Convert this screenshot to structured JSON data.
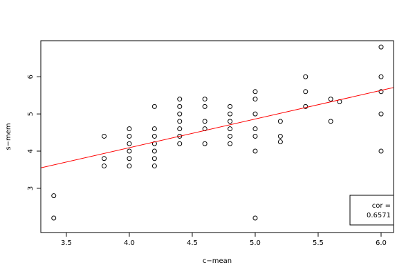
{
  "chart_data": {
    "type": "scatter",
    "xlabel": "c−mean",
    "ylabel": "s−mem",
    "x": [
      3.4,
      3.4,
      3.8,
      3.8,
      3.8,
      4.0,
      4.0,
      4.0,
      4.0,
      4.0,
      4.0,
      4.2,
      4.2,
      4.2,
      4.2,
      4.2,
      4.2,
      4.2,
      4.4,
      4.4,
      4.4,
      4.4,
      4.4,
      4.4,
      4.4,
      4.6,
      4.6,
      4.6,
      4.6,
      4.6,
      4.8,
      4.8,
      4.8,
      4.8,
      4.8,
      4.8,
      5.0,
      5.0,
      5.0,
      5.0,
      5.0,
      5.0,
      5.0,
      5.2,
      5.2,
      5.2,
      5.4,
      5.4,
      5.4,
      5.6,
      5.6,
      5.67,
      6.0,
      6.0,
      6.0,
      6.0,
      6.0
    ],
    "values": [
      2.8,
      2.2,
      4.4,
      3.8,
      3.6,
      4.6,
      4.4,
      4.2,
      4.0,
      3.8,
      3.6,
      5.2,
      4.6,
      4.4,
      4.2,
      4.0,
      3.8,
      3.6,
      5.4,
      5.2,
      5.0,
      4.8,
      4.6,
      4.4,
      4.2,
      5.4,
      5.2,
      4.8,
      4.6,
      4.2,
      5.2,
      5.0,
      4.8,
      4.6,
      4.4,
      4.2,
      5.6,
      5.4,
      5.0,
      4.6,
      4.4,
      4.0,
      2.2,
      4.8,
      4.4,
      4.25,
      6.0,
      5.6,
      5.2,
      5.4,
      4.8,
      5.33,
      6.8,
      6.0,
      5.6,
      5.0,
      4.0
    ],
    "color": "#000000",
    "fit": {
      "intercept": 1.008,
      "slope": 0.771,
      "color": "#ff0000"
    },
    "annotation": [
      "cor =",
      "0.6571"
    ],
    "xlim": [
      3.297,
      6.099
    ],
    "ylim": [
      1.81,
      6.97
    ],
    "xticks": [
      3.5,
      {
        "value": 4,
        "label": "4.0"
      },
      4.5,
      {
        "value": 5,
        "label": "5.0"
      },
      5.5,
      {
        "value": 6,
        "label": "6.0"
      }
    ],
    "yticks": [
      3,
      4,
      5,
      6
    ]
  }
}
